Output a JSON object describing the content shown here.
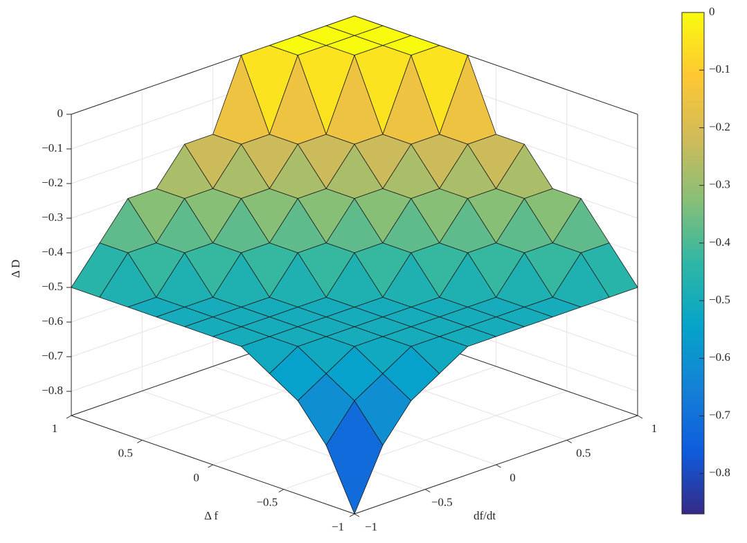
{
  "chart_data": {
    "type": "surface",
    "xlabel": "df/dt",
    "ylabel": "Δ f",
    "zlabel": "Δ D",
    "x": [
      -1,
      -0.8,
      -0.6,
      -0.4,
      -0.2,
      0,
      0.2,
      0.4,
      0.6,
      0.8,
      1
    ],
    "y": [
      -1,
      -0.8,
      -0.6,
      -0.4,
      -0.2,
      0,
      0.2,
      0.4,
      0.6,
      0.8,
      1
    ],
    "z": [
      [
        -0.87,
        -0.7,
        -0.6,
        -0.55,
        -0.5,
        -0.5,
        -0.5,
        -0.5,
        -0.5,
        -0.5,
        -0.5
      ],
      [
        -0.7,
        -0.6,
        -0.55,
        -0.5,
        -0.5,
        -0.5,
        -0.5,
        -0.5,
        -0.5,
        -0.4,
        -0.4
      ],
      [
        -0.6,
        -0.55,
        -0.5,
        -0.5,
        -0.5,
        -0.5,
        -0.5,
        -0.5,
        -0.4,
        -0.4,
        -0.3
      ],
      [
        -0.55,
        -0.5,
        -0.5,
        -0.5,
        -0.5,
        -0.5,
        -0.5,
        -0.4,
        -0.4,
        -0.3,
        -0.3
      ],
      [
        -0.5,
        -0.5,
        -0.5,
        -0.5,
        -0.5,
        -0.5,
        -0.4,
        -0.4,
        -0.3,
        -0.3,
        -0.2
      ],
      [
        -0.5,
        -0.5,
        -0.5,
        -0.5,
        -0.5,
        -0.4,
        -0.4,
        -0.3,
        -0.3,
        -0.2,
        -0.2
      ],
      [
        -0.5,
        -0.5,
        -0.5,
        -0.5,
        -0.4,
        -0.4,
        -0.3,
        -0.3,
        -0.2,
        -0.2,
        0
      ],
      [
        -0.5,
        -0.5,
        -0.5,
        -0.4,
        -0.4,
        -0.3,
        -0.3,
        -0.2,
        -0.2,
        0,
        0
      ],
      [
        -0.5,
        -0.5,
        -0.4,
        -0.4,
        -0.3,
        -0.3,
        -0.2,
        -0.2,
        0,
        0,
        0
      ],
      [
        -0.5,
        -0.4,
        -0.4,
        -0.3,
        -0.3,
        -0.2,
        -0.2,
        0,
        0,
        0,
        0
      ],
      [
        -0.5,
        -0.4,
        -0.3,
        -0.3,
        -0.2,
        -0.2,
        0,
        0,
        0,
        0,
        0
      ]
    ],
    "xlim": [
      -1,
      1
    ],
    "ylim": [
      -1,
      1
    ],
    "zlim": [
      -0.87,
      0
    ],
    "xticks": [
      {
        "value": -1,
        "label": "−1"
      },
      {
        "value": -0.5,
        "label": "−0.5"
      },
      0,
      0.5,
      1
    ],
    "yticks": [
      {
        "value": -1,
        "label": "−1"
      },
      {
        "value": -0.5,
        "label": "−0.5"
      },
      0,
      0.5,
      1
    ],
    "zticks": [
      {
        "value": -0.8,
        "label": "−0.8"
      },
      {
        "value": -0.7,
        "label": "−0.7"
      },
      {
        "value": -0.6,
        "label": "−0.6"
      },
      {
        "value": -0.5,
        "label": "−0.5"
      },
      {
        "value": -0.4,
        "label": "−0.4"
      },
      {
        "value": -0.3,
        "label": "−0.3"
      },
      {
        "value": -0.2,
        "label": "−0.2"
      },
      {
        "value": -0.1,
        "label": "−0.1"
      },
      0
    ],
    "clim": [
      -0.87,
      0
    ],
    "cticks": [
      {
        "value": -0.8,
        "label": "−0.8"
      },
      {
        "value": -0.7,
        "label": "−0.7"
      },
      {
        "value": -0.6,
        "label": "−0.6"
      },
      {
        "value": -0.5,
        "label": "−0.5"
      },
      {
        "value": -0.4,
        "label": "−0.4"
      },
      {
        "value": -0.3,
        "label": "−0.3"
      },
      {
        "value": -0.2,
        "label": "−0.2"
      },
      {
        "value": -0.1,
        "label": "−0.1"
      },
      0
    ],
    "grid": true
  }
}
